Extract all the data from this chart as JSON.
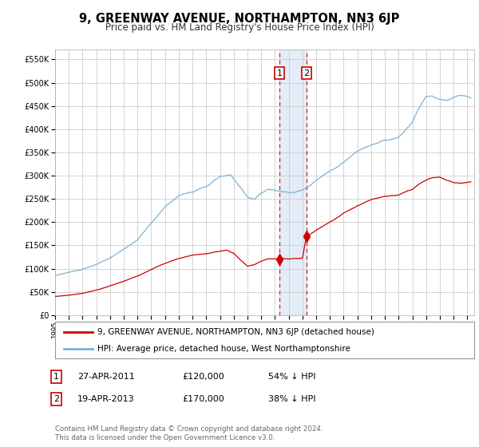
{
  "title": "9, GREENWAY AVENUE, NORTHAMPTON, NN3 6JP",
  "subtitle": "Price paid vs. HM Land Registry's House Price Index (HPI)",
  "title_fontsize": 10.5,
  "subtitle_fontsize": 8.5,
  "hpi_color": "#7ab3d4",
  "property_color": "#cc0000",
  "background_color": "#ffffff",
  "plot_bg_color": "#ffffff",
  "grid_color": "#cccccc",
  "yticks": [
    0,
    50000,
    100000,
    150000,
    200000,
    250000,
    300000,
    350000,
    400000,
    450000,
    500000,
    550000
  ],
  "ytick_labels": [
    "£0",
    "£50K",
    "£100K",
    "£150K",
    "£200K",
    "£250K",
    "£300K",
    "£350K",
    "£400K",
    "£450K",
    "£500K",
    "£550K"
  ],
  "xmin": 1995.0,
  "xmax": 2025.5,
  "ymin": 0,
  "ymax": 572000,
  "purchase1_x": 2011.32,
  "purchase1_y": 120000,
  "purchase2_x": 2013.3,
  "purchase2_y": 170000,
  "legend_property": "9, GREENWAY AVENUE, NORTHAMPTON, NN3 6JP (detached house)",
  "legend_hpi": "HPI: Average price, detached house, West Northamptonshire",
  "note1_label": "1",
  "note1_date": "27-APR-2011",
  "note1_price": "£120,000",
  "note1_hpi": "54% ↓ HPI",
  "note2_label": "2",
  "note2_date": "19-APR-2013",
  "note2_price": "£170,000",
  "note2_hpi": "38% ↓ HPI",
  "footer": "Contains HM Land Registry data © Crown copyright and database right 2024.\nThis data is licensed under the Open Government Licence v3.0."
}
